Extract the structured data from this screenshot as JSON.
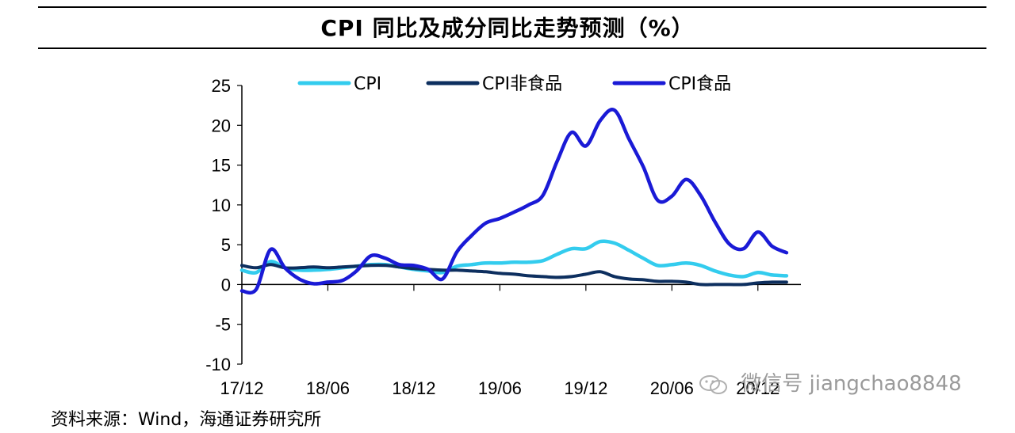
{
  "header": {
    "title": "CPI 同比及成分同比走势预测（%）"
  },
  "footer": {
    "source": "资料来源：Wind，海通证券研究所"
  },
  "watermark": {
    "text": "微信号 jiangchao8848",
    "icon": "wechat-icon"
  },
  "chart_data": {
    "type": "line",
    "title": "CPI 同比及成分同比走势预测（%）",
    "xlabel": "",
    "ylabel": "",
    "ylim": [
      -10,
      25
    ],
    "yticks": [
      25,
      20,
      15,
      10,
      5,
      0,
      -5,
      -10
    ],
    "xticks": [
      "17/12",
      "18/06",
      "18/12",
      "19/06",
      "19/12",
      "20/06",
      "20/12"
    ],
    "x_start": "17/12",
    "x_end": "21/03",
    "grid": false,
    "legend_position": "top",
    "x": [
      "17/12",
      "18/01",
      "18/02",
      "18/03",
      "18/04",
      "18/05",
      "18/06",
      "18/07",
      "18/08",
      "18/09",
      "18/10",
      "18/11",
      "18/12",
      "19/01",
      "19/02",
      "19/03",
      "19/04",
      "19/05",
      "19/06",
      "19/07",
      "19/08",
      "19/09",
      "19/10",
      "19/11",
      "19/12",
      "20/01",
      "20/02",
      "20/03",
      "20/04",
      "20/05",
      "20/06",
      "20/07",
      "20/08",
      "20/09",
      "20/10",
      "20/11",
      "20/12",
      "21/01",
      "21/02"
    ],
    "series": [
      {
        "name": "CPI",
        "color": "#33CCEE",
        "values": [
          1.8,
          1.5,
          2.9,
          2.1,
          1.8,
          1.8,
          1.9,
          2.1,
          2.3,
          2.5,
          2.5,
          2.2,
          1.9,
          1.7,
          1.5,
          2.3,
          2.5,
          2.7,
          2.7,
          2.8,
          2.8,
          3.0,
          3.8,
          4.5,
          4.5,
          5.4,
          5.2,
          4.3,
          3.3,
          2.4,
          2.5,
          2.7,
          2.4,
          1.7,
          1.2,
          1.0,
          1.5,
          1.2,
          1.1
        ]
      },
      {
        "name": "CPI非食品",
        "color": "#0D2F5F",
        "values": [
          2.4,
          2.1,
          2.5,
          2.1,
          2.1,
          2.2,
          2.1,
          2.2,
          2.3,
          2.4,
          2.4,
          2.2,
          2.0,
          1.9,
          1.8,
          1.8,
          1.7,
          1.6,
          1.4,
          1.3,
          1.1,
          1.0,
          0.9,
          1.0,
          1.3,
          1.6,
          1.0,
          0.7,
          0.6,
          0.4,
          0.4,
          0.3,
          0.0,
          0.0,
          0.0,
          0.0,
          0.2,
          0.3,
          0.3
        ]
      },
      {
        "name": "CPI食品",
        "color": "#1A1AD6",
        "values": [
          -0.8,
          -0.6,
          4.4,
          2.1,
          0.7,
          0.1,
          0.3,
          0.5,
          1.7,
          3.6,
          3.3,
          2.5,
          2.4,
          1.9,
          0.7,
          4.1,
          6.1,
          7.7,
          8.3,
          9.1,
          10.0,
          11.2,
          15.5,
          19.1,
          17.4,
          20.6,
          21.9,
          18.3,
          14.8,
          10.6,
          11.1,
          13.2,
          11.2,
          7.9,
          5.1,
          4.5,
          6.6,
          4.8,
          4.0
        ]
      }
    ]
  }
}
